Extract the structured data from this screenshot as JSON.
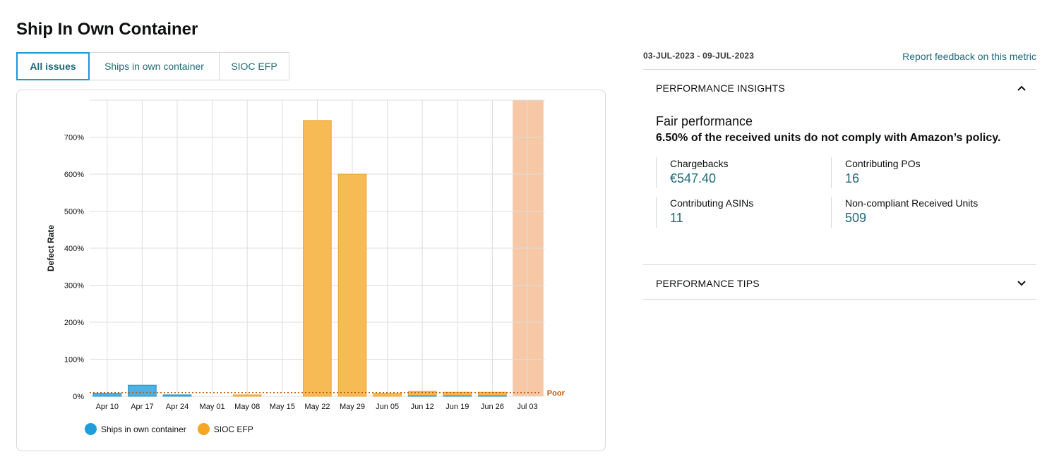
{
  "page": {
    "title": "Ship In Own Container"
  },
  "tabs": [
    {
      "label": "All issues",
      "active": true
    },
    {
      "label": "Ships in own container",
      "active": false
    },
    {
      "label": "SIOC EFP",
      "active": false
    }
  ],
  "chart_data": {
    "type": "bar",
    "ylabel": "Defect Rate",
    "ylim": [
      0,
      800
    ],
    "yticks": [
      "0%",
      "100%",
      "200%",
      "300%",
      "400%",
      "500%",
      "600%",
      "700%"
    ],
    "categories": [
      "Apr 10",
      "Apr 17",
      "Apr 24",
      "May 01",
      "May 08",
      "May 15",
      "May 22",
      "May 29",
      "Jun 05",
      "Jun 12",
      "Jun 19",
      "Jun 26",
      "Jul 03"
    ],
    "series": [
      {
        "name": "Ships in own container",
        "color": "#1d9dd9",
        "values": [
          8,
          30,
          3,
          0,
          0,
          0,
          0,
          0,
          0,
          3,
          3,
          3,
          0
        ]
      },
      {
        "name": "SIOC EFP",
        "color": "#f5a623",
        "values": [
          0,
          0,
          0,
          0,
          1,
          0,
          745,
          600,
          8,
          10,
          8,
          8,
          0
        ]
      }
    ],
    "highlighted_category": "Jul 03",
    "threshold": {
      "label": "Poor",
      "value": 10,
      "color": "#c45500"
    },
    "grid": true,
    "legend_position": "bottom-left"
  },
  "insights": {
    "date_range": "03-JUL-2023 - 09-JUL-2023",
    "feedback_link": "Report feedback on this metric",
    "performance_insights_title": "PERFORMANCE INSIGHTS",
    "performance_insights_icon": "chevron-up-icon",
    "performance_level": "Fair performance",
    "summary": "6.50% of the received units do not comply with Amazon’s policy.",
    "metrics": [
      {
        "label": "Chargebacks",
        "value": "€547.40"
      },
      {
        "label": "Contributing POs",
        "value": "16"
      },
      {
        "label": "Contributing ASINs",
        "value": "11"
      },
      {
        "label": "Non-compliant Received Units",
        "value": "509"
      }
    ],
    "performance_tips_title": "PERFORMANCE TIPS",
    "performance_tips_icon": "chevron-down-icon"
  }
}
